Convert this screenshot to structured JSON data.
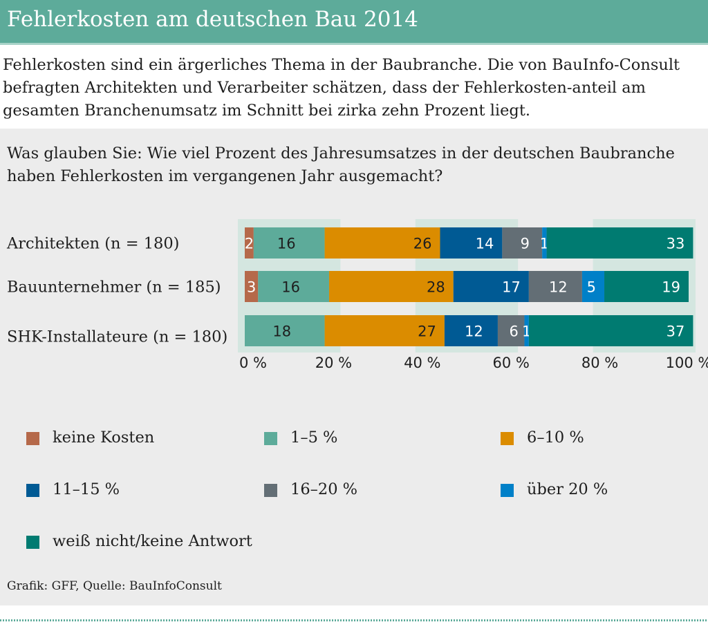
{
  "header": {
    "title": "Fehlerkosten am deutschen Bau 2014"
  },
  "intro": "Fehlerkosten sind ein ärgerliches Thema in der Baubranche. Die von BauInfo-Consult befragten Architekten und Verarbeiter schätzen, dass der Fehlerkosten-anteil am gesamten Branchenumsatz im Schnitt bei zirka zehn Prozent liegt.",
  "question": "Was glauben Sie: Wie viel Prozent des Jahresumsatzes in der deutschen Baubranche haben Fehlerkosten im vergangenen Jahr ausgemacht?",
  "footer": "Grafik: GFF, Quelle: BauInfoConsult",
  "chart_data": {
    "type": "bar",
    "orientation": "horizontal-stacked",
    "categories": [
      "Architekten (n = 180)",
      "Bauunternehmer (n = 185)",
      "SHK-Installateure (n = 180)"
    ],
    "series": [
      {
        "name": "keine Kosten",
        "color": "#b5694a",
        "label_color": "#ffffff",
        "values": [
          2,
          3,
          0
        ]
      },
      {
        "name": "1–5 %",
        "color": "#5dab9a",
        "label_color": "#1e1e1e",
        "values": [
          16,
          16,
          18
        ]
      },
      {
        "name": "6–10 %",
        "color": "#db8c00",
        "label_color": "#1e1e1e",
        "values": [
          26,
          28,
          27
        ]
      },
      {
        "name": "11–15 %",
        "color": "#005a94",
        "label_color": "#ffffff",
        "values": [
          14,
          17,
          12
        ]
      },
      {
        "name": "16–20 %",
        "color": "#636e75",
        "label_color": "#ffffff",
        "values": [
          9,
          12,
          6
        ]
      },
      {
        "name": "über 20 %",
        "color": "#0080c8",
        "label_color": "#ffffff",
        "values": [
          1,
          5,
          1
        ]
      },
      {
        "name": "weiß nicht/keine Antwort",
        "color": "#007b71",
        "label_color": "#ffffff",
        "values": [
          33,
          19,
          37
        ]
      }
    ],
    "x_ticks": [
      "0 %",
      "20 %",
      "40 %",
      "60 %",
      "80 %",
      "100 %"
    ],
    "xlim": [
      0,
      100
    ],
    "grid_bands": true,
    "legend_position": "bottom"
  }
}
